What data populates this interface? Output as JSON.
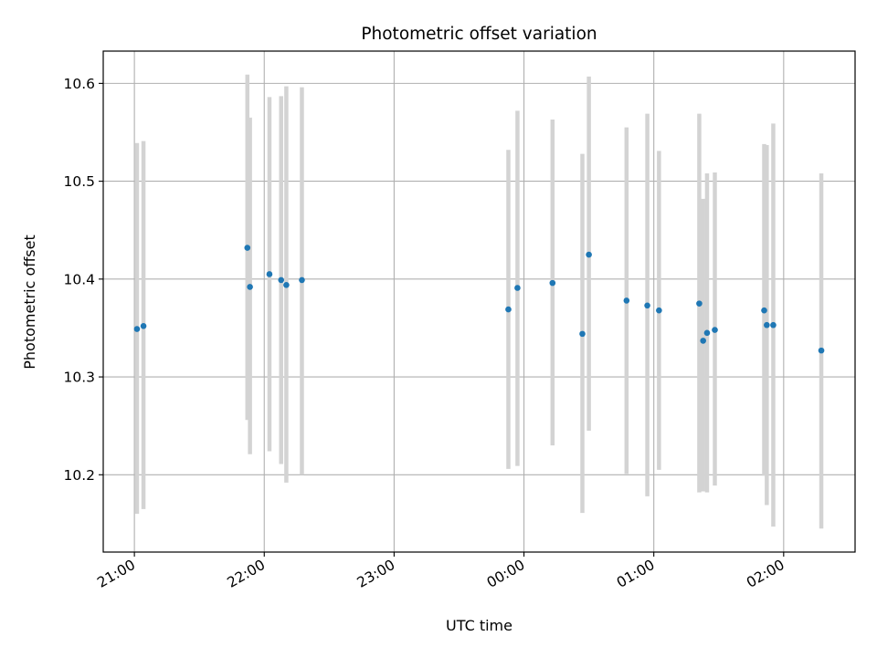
{
  "chart_data": {
    "type": "scatter",
    "title": "Photometric offset variation",
    "xlabel": "UTC time",
    "ylabel": "Photometric offset",
    "xlim": [
      20.76,
      26.55
    ],
    "ylim": [
      10.121,
      10.633
    ],
    "grid": true,
    "x_ticks": [
      {
        "value": 21,
        "label": "21:00"
      },
      {
        "value": 22,
        "label": "22:00"
      },
      {
        "value": 23,
        "label": "23:00"
      },
      {
        "value": 24,
        "label": "00:00"
      },
      {
        "value": 25,
        "label": "01:00"
      },
      {
        "value": 26,
        "label": "02:00"
      }
    ],
    "y_ticks": [
      {
        "value": 10.2,
        "label": "10.2"
      },
      {
        "value": 10.3,
        "label": "10.3"
      },
      {
        "value": 10.4,
        "label": "10.4"
      },
      {
        "value": 10.5,
        "label": "10.5"
      },
      {
        "value": 10.6,
        "label": "10.6"
      }
    ],
    "marker_color": "#1f77b4",
    "errorbar_color": "#d3d3d3",
    "points": [
      {
        "x": 21.02,
        "y": 10.349,
        "ylo": 10.16,
        "yhi": 10.539
      },
      {
        "x": 21.07,
        "y": 10.352,
        "ylo": 10.165,
        "yhi": 10.541
      },
      {
        "x": 21.87,
        "y": 10.432,
        "ylo": 10.256,
        "yhi": 10.609
      },
      {
        "x": 21.89,
        "y": 10.392,
        "ylo": 10.221,
        "yhi": 10.565
      },
      {
        "x": 22.04,
        "y": 10.405,
        "ylo": 10.224,
        "yhi": 10.586
      },
      {
        "x": 22.13,
        "y": 10.399,
        "ylo": 10.211,
        "yhi": 10.587
      },
      {
        "x": 22.17,
        "y": 10.394,
        "ylo": 10.192,
        "yhi": 10.597
      },
      {
        "x": 22.29,
        "y": 10.399,
        "ylo": 10.2,
        "yhi": 10.596
      },
      {
        "x": 23.88,
        "y": 10.369,
        "ylo": 10.206,
        "yhi": 10.532
      },
      {
        "x": 23.95,
        "y": 10.391,
        "ylo": 10.209,
        "yhi": 10.572
      },
      {
        "x": 24.22,
        "y": 10.396,
        "ylo": 10.23,
        "yhi": 10.563
      },
      {
        "x": 24.45,
        "y": 10.344,
        "ylo": 10.161,
        "yhi": 10.528
      },
      {
        "x": 24.5,
        "y": 10.425,
        "ylo": 10.245,
        "yhi": 10.607
      },
      {
        "x": 24.79,
        "y": 10.378,
        "ylo": 10.201,
        "yhi": 10.555
      },
      {
        "x": 24.95,
        "y": 10.373,
        "ylo": 10.178,
        "yhi": 10.569
      },
      {
        "x": 25.04,
        "y": 10.368,
        "ylo": 10.205,
        "yhi": 10.531
      },
      {
        "x": 25.35,
        "y": 10.375,
        "ylo": 10.182,
        "yhi": 10.569
      },
      {
        "x": 25.38,
        "y": 10.337,
        "ylo": 10.183,
        "yhi": 10.482
      },
      {
        "x": 25.41,
        "y": 10.345,
        "ylo": 10.182,
        "yhi": 10.508
      },
      {
        "x": 25.47,
        "y": 10.348,
        "ylo": 10.189,
        "yhi": 10.509
      },
      {
        "x": 25.85,
        "y": 10.368,
        "ylo": 10.199,
        "yhi": 10.538
      },
      {
        "x": 25.87,
        "y": 10.353,
        "ylo": 10.169,
        "yhi": 10.537
      },
      {
        "x": 25.92,
        "y": 10.353,
        "ylo": 10.147,
        "yhi": 10.559
      },
      {
        "x": 26.29,
        "y": 10.327,
        "ylo": 10.145,
        "yhi": 10.508
      }
    ]
  }
}
